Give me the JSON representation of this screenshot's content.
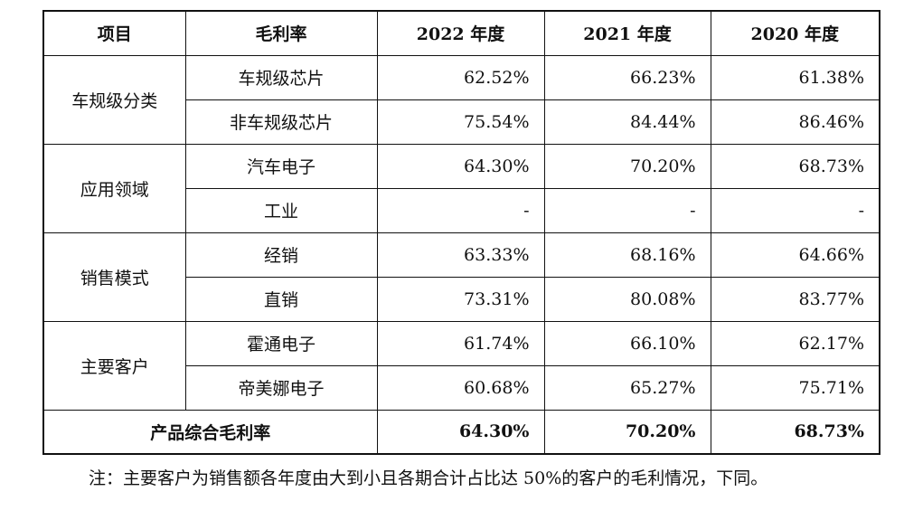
{
  "table": {
    "headers": [
      "项目",
      "毛利率",
      "2022 年度",
      "2021 年度",
      "2020 年度"
    ],
    "groups": [
      {
        "category": "车规级分类",
        "rows": [
          {
            "label": "车规级芯片",
            "values": [
              "62.52%",
              "66.23%",
              "61.38%"
            ]
          },
          {
            "label": "非车规级芯片",
            "values": [
              "75.54%",
              "84.44%",
              "86.46%"
            ]
          }
        ]
      },
      {
        "category": "应用领域",
        "rows": [
          {
            "label": "汽车电子",
            "values": [
              "64.30%",
              "70.20%",
              "68.73%"
            ]
          },
          {
            "label": "工业",
            "values": [
              "-",
              "-",
              "-"
            ]
          }
        ]
      },
      {
        "category": "销售模式",
        "rows": [
          {
            "label": "经销",
            "values": [
              "63.33%",
              "68.16%",
              "64.66%"
            ]
          },
          {
            "label": "直销",
            "values": [
              "73.31%",
              "80.08%",
              "83.77%"
            ]
          }
        ]
      },
      {
        "category": "主要客户",
        "rows": [
          {
            "label": "霍通电子",
            "values": [
              "61.74%",
              "66.10%",
              "62.17%"
            ]
          },
          {
            "label": "帝美娜电子",
            "values": [
              "60.68%",
              "65.27%",
              "75.71%"
            ]
          }
        ]
      }
    ],
    "total": {
      "label": "产品综合毛利率",
      "values": [
        "64.30%",
        "70.20%",
        "68.73%"
      ]
    }
  },
  "note": "注：主要客户为销售额各年度由大到小且各期合计占比达 50%的客户的毛利情况，下同。"
}
